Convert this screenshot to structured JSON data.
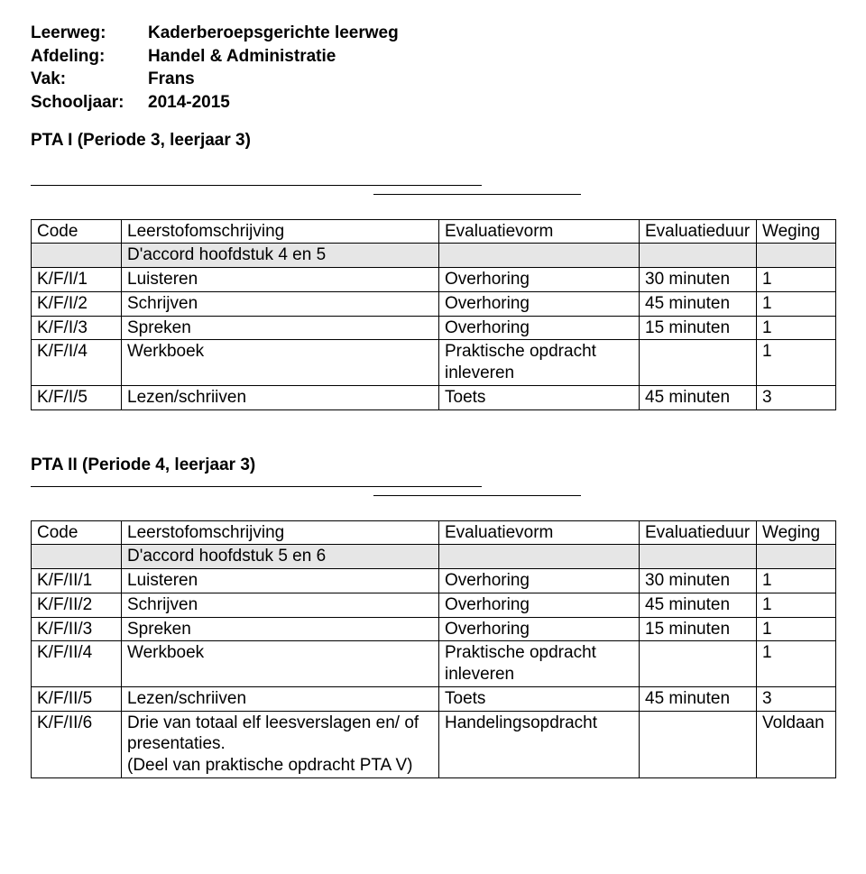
{
  "meta": {
    "rows": [
      {
        "label": "Leerweg:",
        "value": "Kaderberoepsgerichte leerweg"
      },
      {
        "label": "Afdeling:",
        "value": "Handel & Administratie"
      },
      {
        "label": "Vak:",
        "value": "Frans"
      },
      {
        "label": "Schooljaar:",
        "value": "2014-2015"
      }
    ]
  },
  "columns": {
    "code": "Code",
    "desc": "Leerstofomschrijving",
    "eval": "Evaluatievorm",
    "dur": "Evaluatieduur",
    "weg": "Weging"
  },
  "pta1": {
    "title": "PTA I  (Periode 3, leerjaar 3)",
    "shade_desc": "D'accord hoofdstuk 4 en 5",
    "rows": [
      {
        "code": "K/F/I/1",
        "desc": "Luisteren",
        "eval": "Overhoring",
        "dur": "30 minuten",
        "weg": "1"
      },
      {
        "code": "K/F/I/2",
        "desc": "Schrijven",
        "eval": "Overhoring",
        "dur": "45 minuten",
        "weg": "1"
      },
      {
        "code": "K/F/I/3",
        "desc": "Spreken",
        "eval": "Overhoring",
        "dur": "15 minuten",
        "weg": "1"
      },
      {
        "code": "K/F/I/4",
        "desc": "Werkboek",
        "eval": "Praktische opdracht\ninleveren",
        "dur": "",
        "weg": "1"
      },
      {
        "code": "K/F/I/5",
        "desc": "Lezen/schriiven",
        "eval": "Toets",
        "dur": "45 minuten",
        "weg": "3"
      }
    ]
  },
  "pta2": {
    "title": "PTA II (Periode 4, leerjaar 3)",
    "shade_desc": "D'accord hoofdstuk 5 en 6",
    "rows": [
      {
        "code": "K/F/II/1",
        "desc": "Luisteren",
        "eval": "Overhoring",
        "dur": "30 minuten",
        "weg": "1"
      },
      {
        "code": "K/F/II/2",
        "desc": "Schrijven",
        "eval": "Overhoring",
        "dur": "45 minuten",
        "weg": "1"
      },
      {
        "code": "K/F/II/3",
        "desc": "Spreken",
        "eval": "Overhoring",
        "dur": "15 minuten",
        "weg": "1"
      },
      {
        "code": "K/F/II/4",
        "desc": "Werkboek",
        "eval": "Praktische opdracht\ninleveren",
        "dur": "",
        "weg": "1"
      },
      {
        "code": "K/F/II/5",
        "desc": "Lezen/schriiven",
        "eval": "Toets",
        "dur": "45 minuten",
        "weg": "3"
      },
      {
        "code": "K/F/II/6",
        "desc": "Drie van totaal elf leesverslagen en/ of presentaties.\n(Deel van praktische opdracht PTA V)",
        "eval": "Handelingsopdracht",
        "dur": "",
        "weg": "Voldaan"
      }
    ]
  }
}
